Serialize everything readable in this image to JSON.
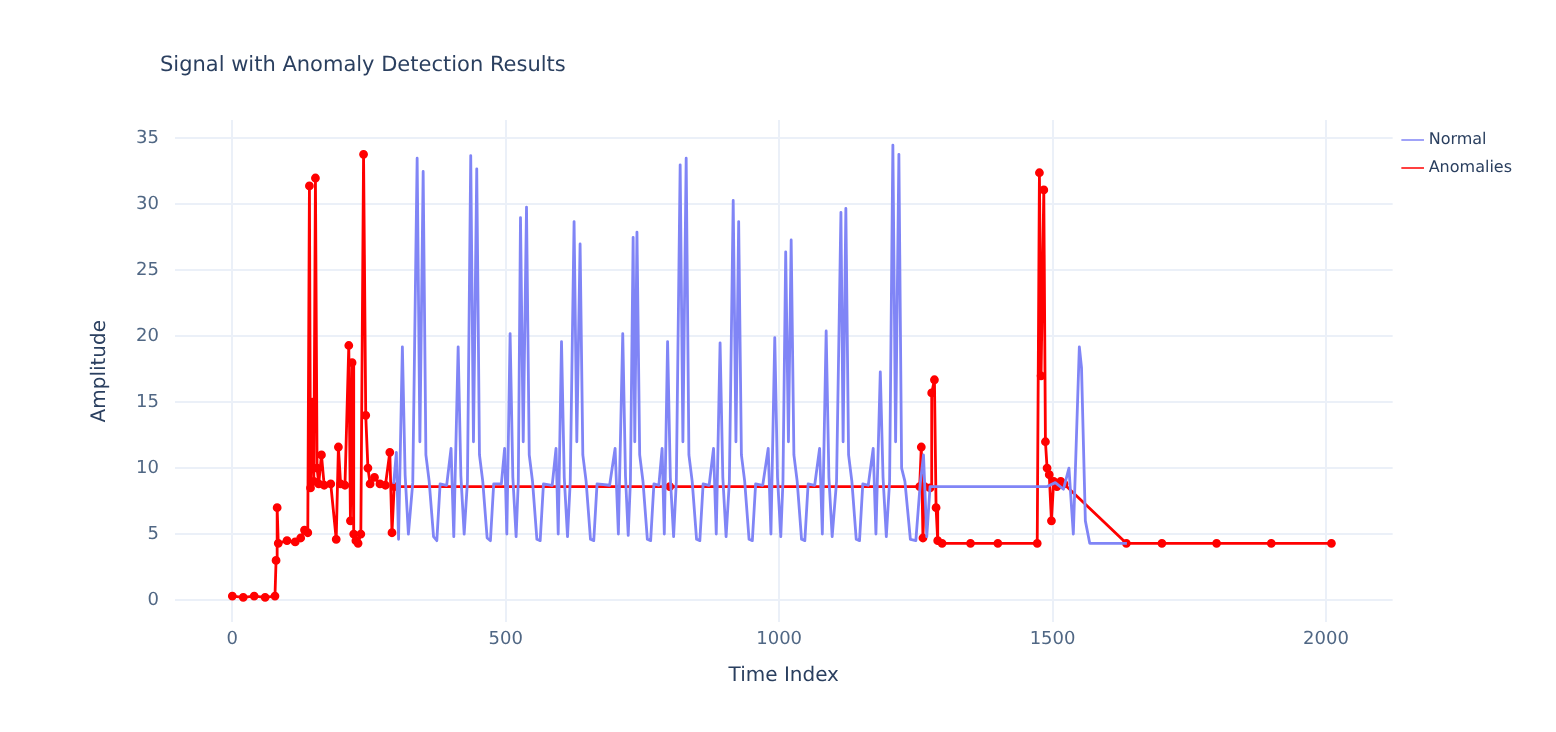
{
  "chart_data": {
    "type": "line",
    "title": "Signal with Anomaly Detection Results",
    "xlabel": "Time Index",
    "ylabel": "Amplitude",
    "xlim": [
      -105,
      2122
    ],
    "ylim": [
      -1.7,
      36.4
    ],
    "xticks": [
      0,
      500,
      1000,
      1500,
      2000
    ],
    "yticks": [
      0,
      5,
      10,
      15,
      20,
      25,
      30,
      35
    ],
    "grid": true,
    "legend": "top right",
    "line_style": "solid",
    "series": [
      {
        "name": "Normal",
        "color": "#8085f6",
        "marker": "none",
        "x": [
          295,
          300,
          304,
          311,
          316,
          322,
          330,
          338,
          343,
          349,
          354,
          360,
          368,
          374,
          380,
          392,
          400,
          405,
          413,
          418,
          424,
          430,
          436,
          441,
          447,
          452,
          458,
          466,
          472,
          478,
          492,
          498,
          502,
          508,
          513,
          519,
          523,
          527,
          532,
          538,
          543,
          549,
          557,
          563,
          569,
          585,
          592,
          596,
          602,
          607,
          613,
          618,
          625,
          630,
          636,
          641,
          647,
          655,
          661,
          667,
          690,
          700,
          706,
          714,
          719,
          724,
          728,
          733,
          736,
          740,
          745,
          751,
          759,
          765,
          771,
          780,
          786,
          790,
          796,
          801,
          807,
          812,
          819,
          824,
          830,
          835,
          841,
          849,
          855,
          861,
          872,
          880,
          885,
          892,
          897,
          903,
          909,
          916,
          921,
          926,
          931,
          937,
          945,
          951,
          957,
          970,
          980,
          985,
          992,
          997,
          1003,
          1007,
          1012,
          1017,
          1022,
          1027,
          1033,
          1041,
          1047,
          1053,
          1065,
          1074,
          1079,
          1086,
          1091,
          1097,
          1105,
          1113,
          1117,
          1122,
          1127,
          1133,
          1141,
          1147,
          1153,
          1163,
          1172,
          1177,
          1185,
          1190,
          1196,
          1202,
          1208,
          1213,
          1219,
          1224,
          1230,
          1240,
          1250,
          1258,
          1264,
          1270,
          1276,
          1490,
          1505,
          1520,
          1530,
          1538,
          1549,
          1553,
          1560,
          1568,
          1636
        ],
        "values": [
          8.8,
          11.2,
          4.6,
          19.2,
          9.5,
          5,
          8.9,
          33.5,
          12,
          32.5,
          11,
          9,
          4.8,
          4.5,
          8.8,
          8.7,
          11.5,
          4.8,
          19.2,
          9.4,
          5,
          9,
          33.7,
          12,
          32.7,
          11,
          9,
          4.7,
          4.5,
          8.8,
          8.8,
          11.5,
          5,
          20.2,
          9.3,
          4.8,
          9,
          29,
          12,
          29.8,
          11,
          9,
          4.6,
          4.5,
          8.8,
          8.7,
          11.5,
          5,
          19.6,
          9.3,
          4.8,
          9,
          28.7,
          12,
          27,
          11,
          9,
          4.6,
          4.5,
          8.8,
          8.7,
          11.5,
          5,
          20.2,
          9.4,
          4.9,
          9,
          27.5,
          12,
          27.9,
          11,
          9,
          4.6,
          4.5,
          8.8,
          8.7,
          11.5,
          5,
          19.6,
          9.3,
          4.8,
          9,
          33,
          12,
          33.5,
          11,
          9,
          4.6,
          4.5,
          8.8,
          8.7,
          11.5,
          5,
          19.5,
          9.3,
          4.8,
          9,
          30.3,
          12,
          28.7,
          11,
          9,
          4.6,
          4.5,
          8.8,
          8.7,
          11.5,
          5,
          19.9,
          9.3,
          4.8,
          9,
          26.4,
          12,
          27.3,
          11,
          9,
          4.6,
          4.5,
          8.8,
          8.7,
          11.5,
          5,
          20.4,
          9.3,
          4.8,
          9,
          29.4,
          12,
          29.7,
          11,
          9,
          4.6,
          4.5,
          8.8,
          8.7,
          11.5,
          5,
          17.3,
          9.3,
          4.8,
          9,
          34.5,
          12,
          33.8,
          10,
          9,
          4.6,
          4.5,
          8.8,
          11,
          4.8,
          8.6,
          8.6,
          8.9,
          8.4,
          10,
          5,
          19.2,
          17.6,
          6,
          4.3,
          4.3
        ]
      },
      {
        "name": "Anomalies",
        "color": "#ff0000",
        "marker": "circle",
        "x": [
          0,
          20,
          40,
          60,
          78,
          80,
          82,
          84,
          100,
          115,
          125,
          132,
          138,
          141,
          143,
          146,
          149,
          152,
          155,
          158,
          163,
          168,
          180,
          190,
          194,
          198,
          206,
          213,
          216,
          219,
          222,
          226,
          230,
          235,
          240,
          244,
          248,
          252,
          260,
          270,
          280,
          288,
          292,
          296,
          800,
          1257,
          1260,
          1263,
          1266,
          1276,
          1279,
          1284,
          1287,
          1290,
          1298,
          1350,
          1400,
          1472,
          1476,
          1479,
          1484,
          1487,
          1490,
          1494,
          1498,
          1502,
          1508,
          1515,
          1521,
          1635,
          1700,
          1800,
          1900,
          2010
        ],
        "values": [
          0.3,
          0.2,
          0.3,
          0.2,
          0.3,
          3,
          7,
          4.3,
          4.5,
          4.4,
          4.7,
          5.3,
          5.1,
          31.4,
          8.5,
          15,
          9,
          32,
          10,
          8.8,
          11,
          8.7,
          8.8,
          4.6,
          11.6,
          8.8,
          8.7,
          19.3,
          6,
          18,
          5,
          4.5,
          4.3,
          5,
          33.8,
          14,
          10,
          8.8,
          9.3,
          8.8,
          8.7,
          11.2,
          5.1,
          8.6,
          8.6,
          8.6,
          11.6,
          4.7,
          8.6,
          8.5,
          15.7,
          16.7,
          7,
          4.5,
          4.3,
          4.3,
          4.3,
          4.3,
          32.4,
          17,
          31.1,
          12,
          10,
          9.5,
          6,
          9,
          8.6,
          9,
          8.8,
          4.3,
          4.3,
          4.3,
          4.3,
          4.3
        ]
      }
    ]
  }
}
